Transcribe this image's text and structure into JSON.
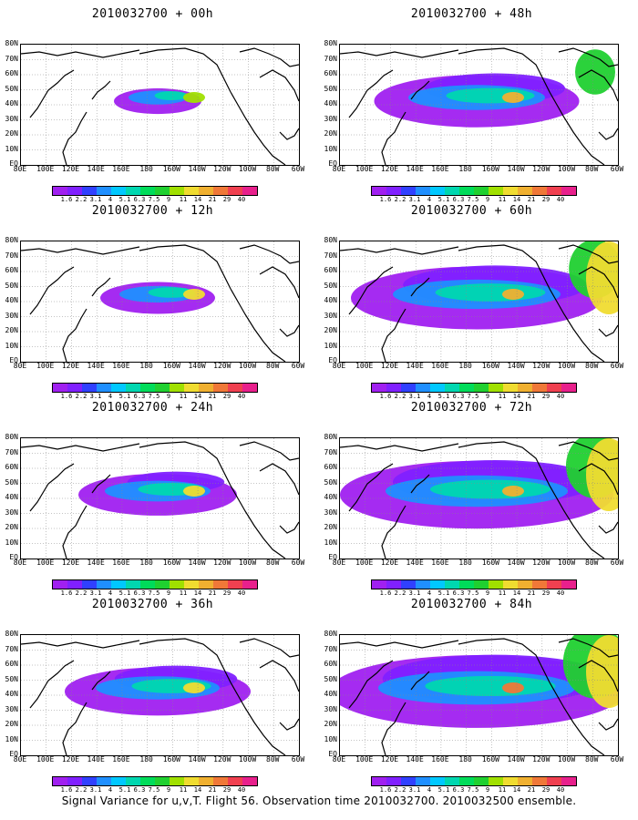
{
  "caption": "Signal Variance for u,v,T. Flight 56. Observation time 2010032700. 2010032500 ensemble.",
  "panels": [
    {
      "title": "2010032700 + 00h",
      "coverage": 0.12
    },
    {
      "title": "2010032700 + 48h",
      "coverage": 0.55
    },
    {
      "title": "2010032700 + 12h",
      "coverage": 0.22
    },
    {
      "title": "2010032700 + 60h",
      "coverage": 0.72
    },
    {
      "title": "2010032700 + 24h",
      "coverage": 0.38
    },
    {
      "title": "2010032700 + 72h",
      "coverage": 0.8
    },
    {
      "title": "2010032700 + 36h",
      "coverage": 0.48
    },
    {
      "title": "2010032700 + 84h",
      "coverage": 0.88
    }
  ],
  "lat_labels": [
    "80N",
    "70N",
    "60N",
    "50N",
    "40N",
    "30N",
    "20N",
    "10N",
    "EQ"
  ],
  "lon_labels": [
    "80E",
    "100E",
    "120E",
    "140E",
    "160E",
    "180",
    "160W",
    "140W",
    "120W",
    "100W",
    "80W",
    "60W"
  ],
  "colorbar": {
    "labels": [
      "1.6",
      "2.2",
      "3.1",
      "4",
      "5.1",
      "6.3",
      "7.5",
      "9",
      "11",
      "14",
      "21",
      "29",
      "40"
    ],
    "colors": [
      "#a020f0",
      "#8020ff",
      "#3040ff",
      "#1f8fff",
      "#00c8ff",
      "#00d7b0",
      "#00dc5a",
      "#20d030",
      "#a0e000",
      "#f0dc30",
      "#f0b030",
      "#f07838",
      "#f04050",
      "#e8208c"
    ]
  }
}
